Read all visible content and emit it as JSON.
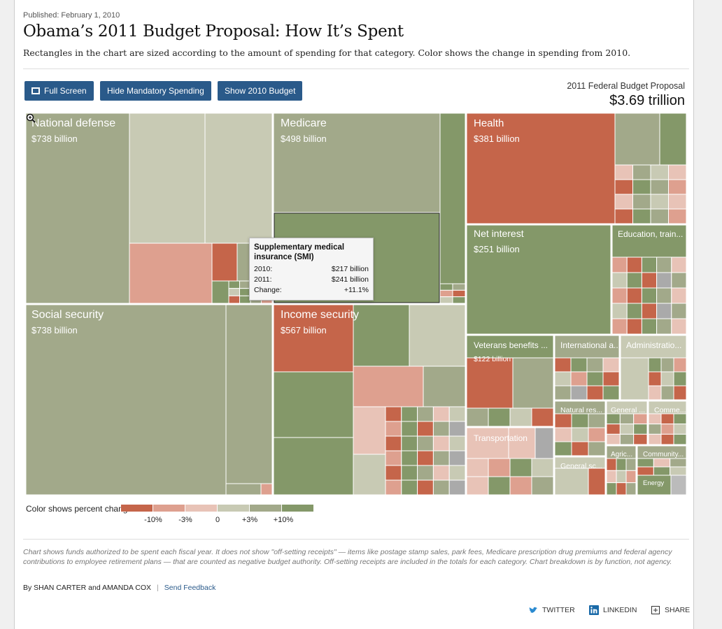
{
  "header": {
    "published": "Published: February 1, 2010",
    "title": "Obama’s 2011 Budget Proposal: How It’s Spent",
    "subtitle": "Rectangles in the chart are sized according to the amount of spending for that category. Color shows the change in spending from 2010."
  },
  "toolbar": {
    "full_screen": "Full Screen",
    "hide_mandatory": "Hide Mandatory Spending",
    "show_2010": "Show 2010 Budget"
  },
  "budget": {
    "label": "2011 Federal Budget Proposal",
    "total": "$3.69 trillion"
  },
  "colors": {
    "neg10": "#c5654a",
    "neg3": "#dea08f",
    "neg0": "#e8c3b7",
    "pos0": "#c8cab4",
    "pos3": "#a2a98a",
    "pos10": "#849869"
  },
  "chart_data": {
    "type": "treemap",
    "unit": "billion dollars",
    "categories": [
      {
        "name": "National defense",
        "value_label": "$738 billion",
        "value": 738
      },
      {
        "name": "Social security",
        "value_label": "$738 billion",
        "value": 738
      },
      {
        "name": "Medicare",
        "value_label": "$498 billion",
        "value": 498
      },
      {
        "name": "Income security",
        "value_label": "$567 billion",
        "value": 567
      },
      {
        "name": "Health",
        "value_label": "$381 billion",
        "value": 381
      },
      {
        "name": "Net interest",
        "value_label": "$251 billion",
        "value": 251
      },
      {
        "name": "Education, train...",
        "value_label": ""
      },
      {
        "name": "Veterans benefits ...",
        "value_label": "$122 billion",
        "value": 122
      },
      {
        "name": "International a...",
        "value_label": ""
      },
      {
        "name": "Administratio...",
        "value_label": ""
      },
      {
        "name": "Transportation",
        "value_label": ""
      },
      {
        "name": "Natural res...",
        "value_label": ""
      },
      {
        "name": "General ...",
        "value_label": ""
      },
      {
        "name": "Comme...",
        "value_label": ""
      },
      {
        "name": "General sc...",
        "value_label": ""
      },
      {
        "name": "Agric...",
        "value_label": ""
      },
      {
        "name": "Community...",
        "value_label": ""
      },
      {
        "name": "Energy",
        "value_label": ""
      }
    ],
    "tooltip": {
      "title": "Supplementary medical insurance (SMI)",
      "rows": [
        {
          "label": "2010:",
          "value": "$217 billion"
        },
        {
          "label": "2011:",
          "value": "$241 billion"
        },
        {
          "label": "Change:",
          "value": "+11.1%"
        }
      ]
    },
    "legend": {
      "title": "Color shows percent change from 2010",
      "ticks": [
        "-10%",
        "-3%",
        "0",
        "+3%",
        "+10%"
      ]
    }
  },
  "notes": "Chart shows funds authorized to be spent each fiscal year. It does not show \"off-setting receipts\" — items like postage stamp sales, park fees, Medicare prescription drug premiums and federal agency contributions to employee retirement plans — that are counted as negative budget authority. Off-setting receipts are included in the totals for each category. Chart breakdown is by function, not agency.",
  "footer": {
    "byline": "By SHAN CARTER and AMANDA COX",
    "separator": "|",
    "feedback": "Send Feedback",
    "twitter": "TWITTER",
    "linkedin": "LINKEDIN",
    "share": "SHARE"
  }
}
